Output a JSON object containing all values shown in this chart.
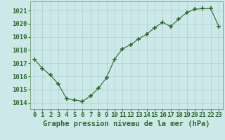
{
  "x": [
    0,
    1,
    2,
    3,
    4,
    5,
    6,
    7,
    8,
    9,
    10,
    11,
    12,
    13,
    14,
    15,
    16,
    17,
    18,
    19,
    20,
    21,
    22,
    23
  ],
  "y": [
    1017.3,
    1016.6,
    1016.1,
    1015.4,
    1014.3,
    1014.2,
    1014.1,
    1014.5,
    1015.1,
    1015.9,
    1017.3,
    1018.1,
    1018.4,
    1018.85,
    1019.2,
    1019.7,
    1020.1,
    1019.8,
    1020.35,
    1020.85,
    1021.1,
    1021.15,
    1021.15,
    1019.8
  ],
  "ylim": [
    1013.5,
    1021.7
  ],
  "yticks": [
    1014,
    1015,
    1016,
    1017,
    1018,
    1019,
    1020,
    1021
  ],
  "xticks": [
    0,
    1,
    2,
    3,
    4,
    5,
    6,
    7,
    8,
    9,
    10,
    11,
    12,
    13,
    14,
    15,
    16,
    17,
    18,
    19,
    20,
    21,
    22,
    23
  ],
  "xlabel": "Graphe pression niveau de la mer (hPa)",
  "line_color": "#2d6a2d",
  "marker_color": "#2d6a2d",
  "bg_color": "#cce8e8",
  "grid_color": "#aacfcf",
  "tick_label_color": "#2d6a2d",
  "xlabel_color": "#2d6a2d",
  "xlabel_fontsize": 7.5,
  "tick_fontsize": 6.5,
  "spine_color": "#7aaa7a"
}
